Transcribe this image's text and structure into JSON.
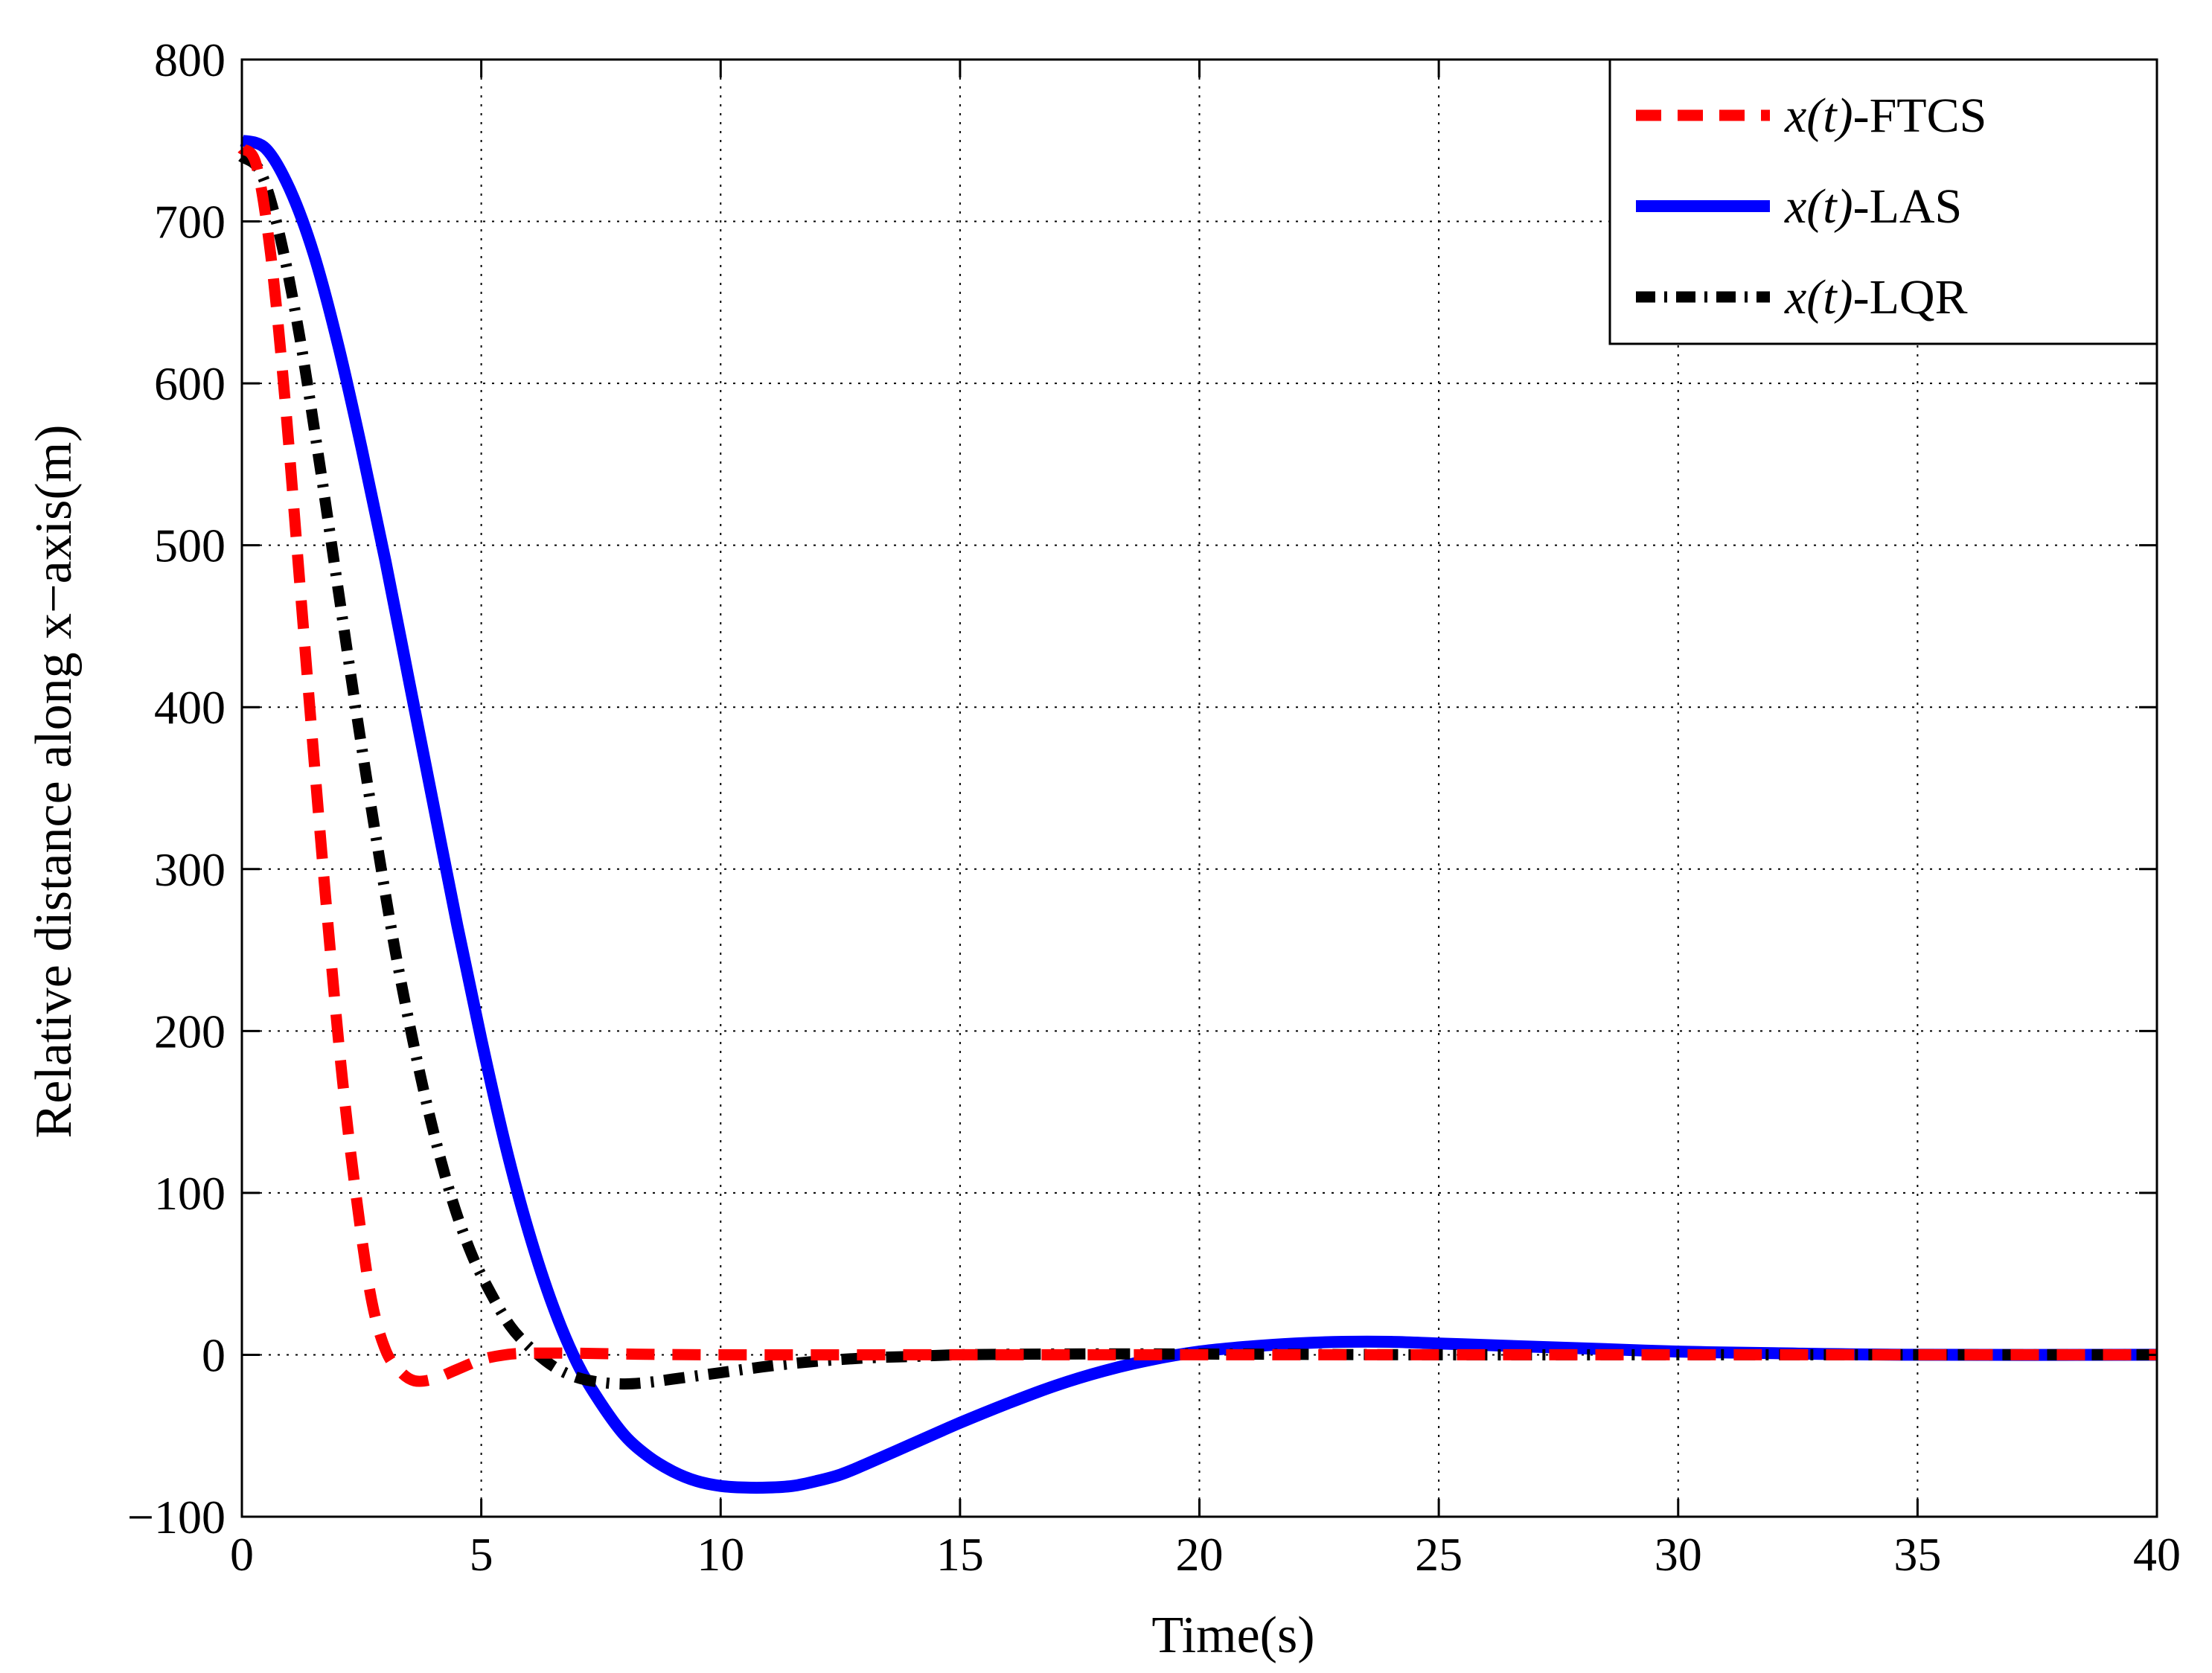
{
  "chart_data": {
    "type": "line",
    "title": "",
    "xlabel": "Time(s)",
    "ylabel": "Relative distance along x−axis(m)",
    "xlim": [
      0,
      40
    ],
    "ylim": [
      -100,
      800
    ],
    "x_ticks": [
      0,
      5,
      10,
      15,
      20,
      25,
      30,
      35,
      40
    ],
    "x_tick_labels": [
      "0",
      "5",
      "10",
      "15",
      "20",
      "25",
      "30",
      "35",
      "40"
    ],
    "y_ticks": [
      -100,
      0,
      100,
      200,
      300,
      400,
      500,
      600,
      700,
      800
    ],
    "y_tick_labels": [
      "−100",
      "0",
      "100",
      "200",
      "300",
      "400",
      "500",
      "600",
      "700",
      "800"
    ],
    "grid": true,
    "legend_position": "top-right",
    "series": [
      {
        "name": "x(t)-FTCS",
        "legend_math": "x(t)",
        "legend_suffix": "-FTCS",
        "color": "#ff0000",
        "style": "dashed",
        "x": [
          0,
          0.3,
          0.6,
          0.9,
          1.2,
          1.5,
          1.8,
          2.1,
          2.4,
          2.7,
          3.0,
          3.3,
          3.6,
          4.0,
          4.5,
          5.0,
          5.5,
          6.0,
          7.0,
          8.0,
          10,
          15,
          20,
          30,
          40
        ],
        "y": [
          745,
          735,
          680,
          590,
          480,
          370,
          265,
          170,
          95,
          35,
          3,
          -10,
          -16,
          -15,
          -9,
          -3,
          0,
          1,
          1,
          0.5,
          0,
          0,
          0,
          0,
          0
        ]
      },
      {
        "name": "x(t)-LAS",
        "legend_math": "x(t)",
        "legend_suffix": "-LAS",
        "color": "#0000ff",
        "style": "solid",
        "x": [
          0,
          0.5,
          1,
          1.5,
          2,
          2.5,
          3,
          3.5,
          4,
          4.5,
          5,
          5.5,
          6,
          6.5,
          7,
          7.5,
          8,
          8.5,
          9,
          9.5,
          10,
          10.5,
          11,
          11.5,
          12,
          12.5,
          13,
          14,
          15,
          16,
          17,
          18,
          19,
          20,
          21,
          22,
          23,
          24,
          25,
          26,
          27,
          28,
          30,
          32,
          35,
          40
        ],
        "y": [
          750,
          745,
          720,
          680,
          625,
          560,
          490,
          415,
          340,
          265,
          195,
          130,
          75,
          30,
          -5,
          -30,
          -50,
          -63,
          -72,
          -78,
          -81,
          -82,
          -82,
          -81,
          -78,
          -74,
          -68,
          -55,
          -42,
          -30,
          -19,
          -10,
          -3,
          2,
          5,
          7,
          8,
          8,
          7,
          6,
          5,
          4,
          2,
          1,
          0,
          0
        ]
      },
      {
        "name": "x(t)-LQR",
        "legend_math": "x(t)",
        "legend_suffix": "-LQR",
        "color": "#000000",
        "style": "dashdot",
        "x": [
          0,
          0.4,
          0.8,
          1.2,
          1.6,
          2.0,
          2.4,
          2.8,
          3.2,
          3.6,
          4.0,
          4.4,
          4.8,
          5.2,
          5.6,
          6.0,
          6.5,
          7.0,
          7.5,
          8.0,
          8.5,
          9.0,
          10,
          11,
          12,
          13,
          14,
          15,
          17,
          20,
          25,
          30,
          40
        ],
        "y": [
          740,
          730,
          690,
          630,
          555,
          475,
          395,
          320,
          250,
          190,
          138,
          95,
          62,
          38,
          18,
          5,
          -7,
          -14,
          -17,
          -18,
          -17,
          -15,
          -11,
          -7,
          -4,
          -2,
          -1,
          0,
          0.5,
          0.5,
          0,
          0,
          0
        ]
      }
    ]
  }
}
